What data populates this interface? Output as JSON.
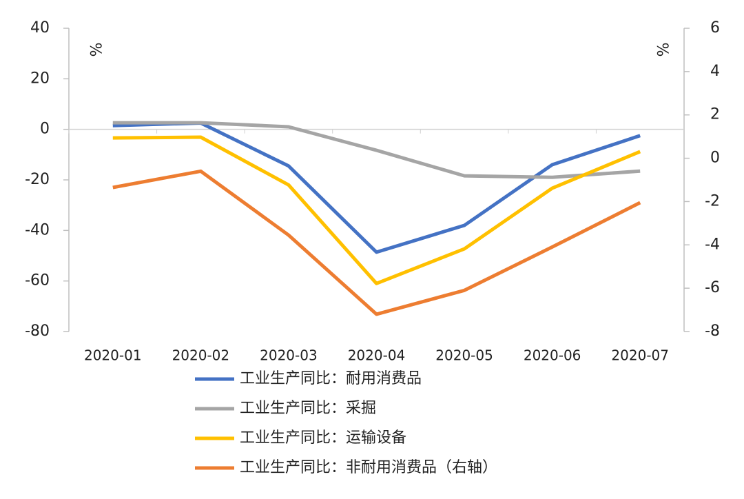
{
  "chart_data": {
    "type": "line",
    "ylabel": "%",
    "y2label": "%",
    "categories": [
      "2020-01",
      "2020-02",
      "2020-03",
      "2020-04",
      "2020-05",
      "2020-06",
      "2020-07"
    ],
    "series": [
      {
        "name": "工业生产同比：耐用消费品",
        "color": "#4472c4",
        "values": [
          1.5,
          2.5,
          -14.5,
          -48.6,
          -38,
          -14,
          -2.5
        ]
      },
      {
        "name": "工业生产同比：采掘",
        "color": "#a5a5a5",
        "values": [
          2.6,
          2.6,
          1,
          -8.3,
          -18.4,
          -19,
          -16.5
        ]
      },
      {
        "name": "工业生产同比：运输设备",
        "color": "#ffc000",
        "values": [
          -3.4,
          -3.1,
          -22,
          -61,
          -47.3,
          -23.3,
          -8.8
        ]
      },
      {
        "name": "工业生产同比：非耐用消费品（右轴）",
        "color": "#ed7d31",
        "axis": "y2",
        "values": [
          -1.35,
          -0.6,
          -3.55,
          -7.2,
          -6.1,
          -4.1,
          -2.05
        ]
      }
    ],
    "ylim": [
      -80,
      40
    ],
    "yticks": [
      40,
      20,
      0,
      -20,
      -40,
      -60,
      -80
    ],
    "y2lim": [
      -8,
      6
    ],
    "y2ticks": [
      6,
      4,
      2,
      0,
      -2,
      -4,
      -6,
      -8
    ]
  }
}
